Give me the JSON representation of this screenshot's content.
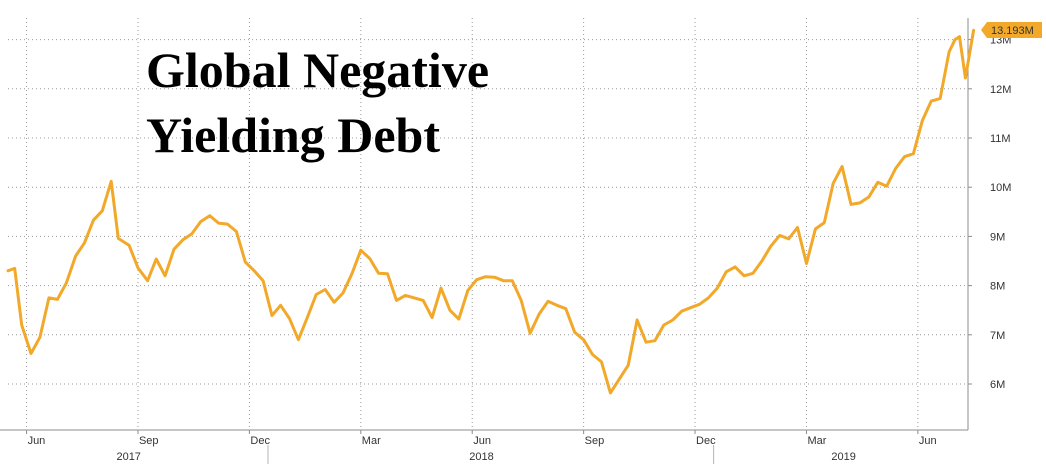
{
  "chart_data": {
    "type": "line",
    "title": "Global Negative Yielding Debt",
    "title_lines": [
      "Global Negative",
      "Yielding Debt"
    ],
    "xlabel": "",
    "ylabel": "",
    "y_unit": "M",
    "ylim": [
      5,
      13.5
    ],
    "y_ticks": [
      6,
      7,
      8,
      9,
      10,
      11,
      12,
      13
    ],
    "y_tick_labels": [
      "6M",
      "7M",
      "8M",
      "9M",
      "10M",
      "11M",
      "12M",
      "13M"
    ],
    "x_range": [
      0,
      25.5
    ],
    "x_ticks": [
      {
        "x": 0.5,
        "label": "Jun"
      },
      {
        "x": 3.5,
        "label": "Sep"
      },
      {
        "x": 6.5,
        "label": "Dec"
      },
      {
        "x": 9.5,
        "label": "Mar"
      },
      {
        "x": 12.5,
        "label": "Jun"
      },
      {
        "x": 15.5,
        "label": "Sep"
      },
      {
        "x": 18.5,
        "label": "Dec"
      },
      {
        "x": 21.5,
        "label": "Mar"
      },
      {
        "x": 24.5,
        "label": "Jun"
      }
    ],
    "year_labels": [
      {
        "x": 3.25,
        "label": "2017"
      },
      {
        "x": 12.75,
        "label": "2018"
      },
      {
        "x": 22.5,
        "label": "2019"
      }
    ],
    "year_dividers": [
      7.0,
      19.0
    ],
    "grid": true,
    "legend": "none",
    "last_value_label": "13.193M",
    "color": "#f2a829",
    "series": [
      {
        "x": [
          0.0,
          0.18,
          0.37,
          0.62,
          0.86,
          1.1,
          1.33,
          1.57,
          1.82,
          2.06,
          2.3,
          2.54,
          2.78,
          2.97,
          3.26,
          3.5,
          3.76,
          3.99,
          4.23,
          4.47,
          4.71,
          4.95,
          5.19,
          5.43,
          5.67,
          5.91,
          6.15,
          6.39,
          6.63,
          6.87,
          7.11,
          7.34,
          7.58,
          7.82,
          8.06,
          8.3,
          8.54,
          8.78,
          9.02,
          9.26,
          9.5,
          9.74,
          9.98,
          10.22,
          10.46,
          10.7,
          10.94,
          11.18,
          11.42,
          11.66,
          11.9,
          12.14,
          12.38,
          12.62,
          12.86,
          13.1,
          13.34,
          13.58,
          13.82,
          14.06,
          14.3,
          14.54,
          14.78,
          15.02,
          15.26,
          15.5,
          15.74,
          15.98,
          16.22,
          16.46,
          16.7,
          16.94,
          17.18,
          17.42,
          17.66,
          17.9,
          18.14,
          18.38,
          18.62,
          18.86,
          19.1,
          19.34,
          19.58,
          19.82,
          20.06,
          20.3,
          20.54,
          20.78,
          21.02,
          21.26,
          21.5,
          21.74,
          21.98,
          22.22,
          22.46,
          22.7,
          22.94,
          23.18,
          23.42,
          23.66,
          23.9,
          24.14,
          24.38,
          24.62,
          24.86,
          25.1,
          25.34
        ],
        "y": [
          8.3,
          8.35,
          7.2,
          6.62,
          6.95,
          7.75,
          7.72,
          8.05,
          8.6,
          8.87,
          9.33,
          9.52,
          10.12,
          8.96,
          8.82,
          8.36,
          8.1,
          8.54,
          8.2,
          8.74,
          8.93,
          9.05,
          9.3,
          9.42,
          9.27,
          9.25,
          9.1,
          8.48,
          8.3,
          8.1,
          7.39,
          7.6,
          7.33,
          6.9,
          7.35,
          7.82,
          7.92,
          7.66,
          7.85,
          8.24,
          8.72,
          8.55,
          8.25,
          8.24,
          7.7,
          7.8,
          7.75,
          7.7,
          7.35,
          7.95,
          7.5,
          7.32,
          7.9,
          8.12,
          8.18,
          8.17,
          8.1,
          8.1,
          7.7,
          7.03,
          7.42,
          7.68,
          7.6,
          7.53,
          7.05,
          6.9,
          6.6,
          6.45,
          5.82,
          6.1,
          6.38,
          7.3,
          6.85,
          6.88,
          7.2,
          7.3,
          7.48,
          7.55,
          7.62,
          7.75,
          7.95,
          8.28,
          8.38,
          8.2,
          8.25,
          8.5,
          8.8,
          9.02,
          8.95,
          9.18,
          8.45,
          9.15,
          9.28,
          10.08,
          10.42,
          9.65,
          9.68,
          9.8,
          10.1,
          10.02,
          10.38,
          10.62,
          10.68,
          11.35,
          11.75,
          11.8,
          12.75
        ]
      }
    ],
    "tail_points": [
      {
        "x": 25.5,
        "y": 13.0
      },
      {
        "x": 25.62,
        "y": 13.06
      },
      {
        "x": 25.78,
        "y": 12.22
      },
      {
        "x": 26.0,
        "y": 13.19
      }
    ]
  }
}
